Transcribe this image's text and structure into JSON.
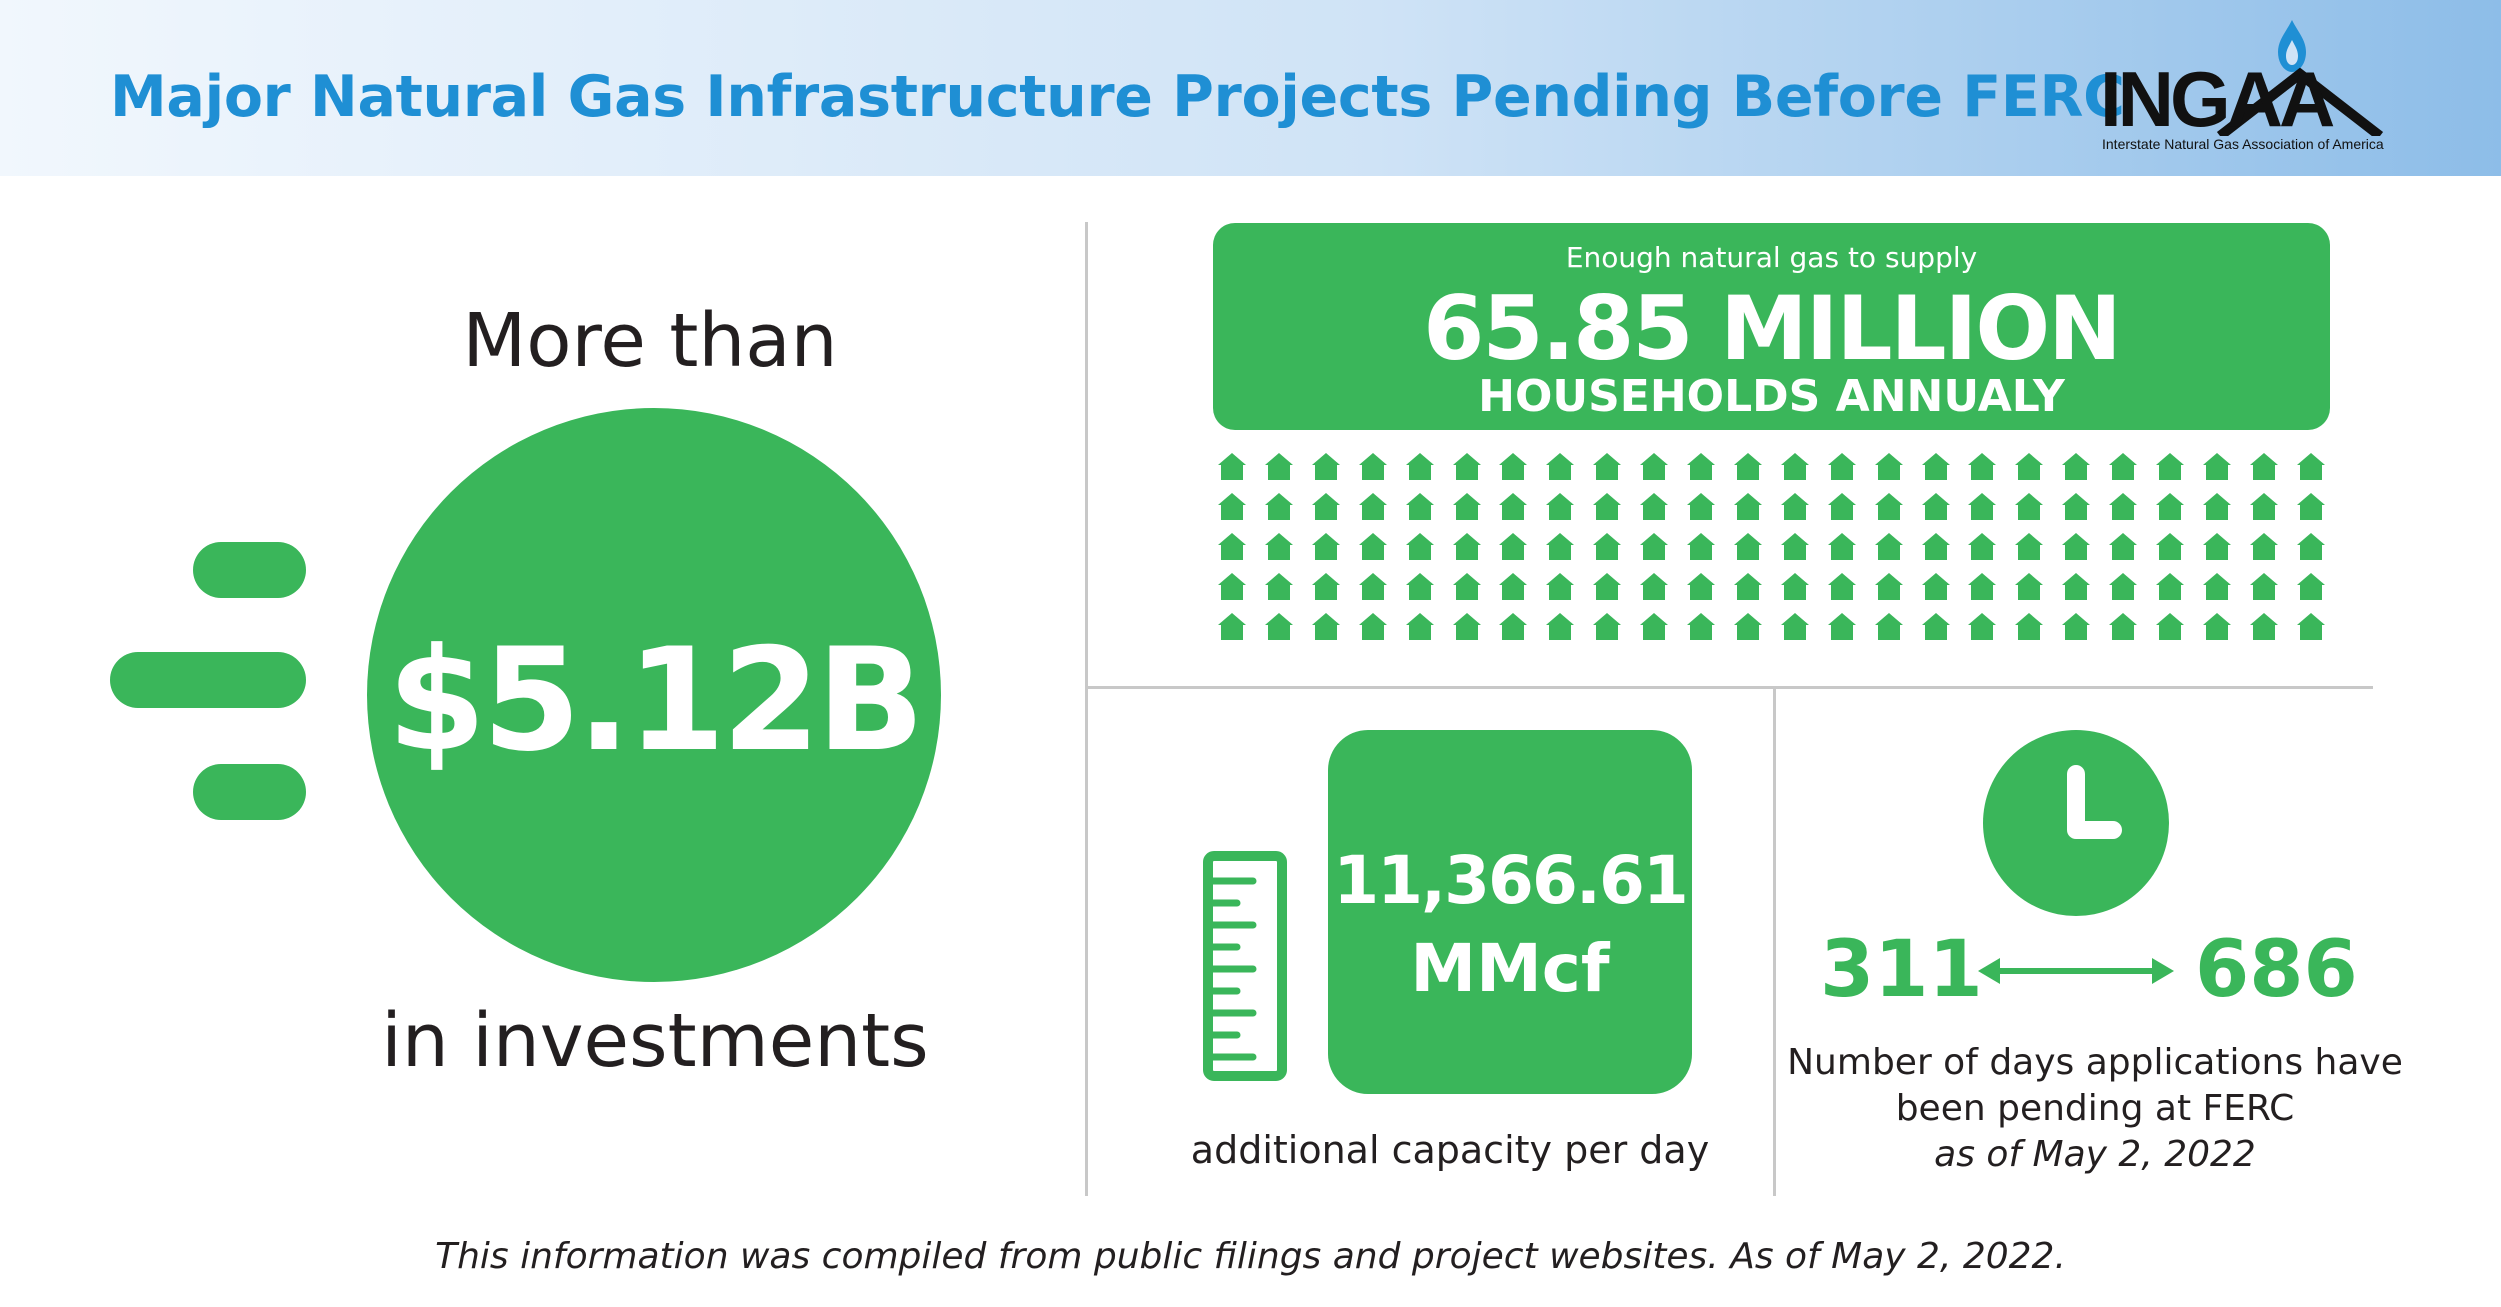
{
  "header": {
    "title": "Major Natural Gas Infrastructure Projects Pending Before FERC",
    "logo": {
      "wordmark": "INGAA",
      "subtitle": "Interstate Natural Gas Association of America",
      "icon": "flame-icon"
    }
  },
  "investment": {
    "prefix": "More than",
    "amount": "$5.12B",
    "suffix": "in investments",
    "icon": "speed-lines-icon"
  },
  "households": {
    "supply_text": "Enough natural gas to supply",
    "number": "65.85 MILLION",
    "label": "HOUSEHOLDS ANNUALY",
    "icon": "house-icon",
    "icon_rows": 5,
    "icon_cols": 24
  },
  "capacity": {
    "value": "11,366.61",
    "unit": "MMcf",
    "caption": "additional capacity per day",
    "icon": "ruler-icon"
  },
  "pending_days": {
    "from": "311",
    "to": "686",
    "caption": "Number of days applications have been pending at FERC",
    "date": "as of May 2, 2022",
    "icons": [
      "clock-icon",
      "double-arrow-icon"
    ]
  },
  "footer": "This information was compiled from public filings and project websites. As of May 2, 2022.",
  "colors": {
    "accent_green": "#3ab65a",
    "title_blue": "#1f8fd4",
    "text": "#231f20",
    "divider": "#c8c8c8"
  }
}
